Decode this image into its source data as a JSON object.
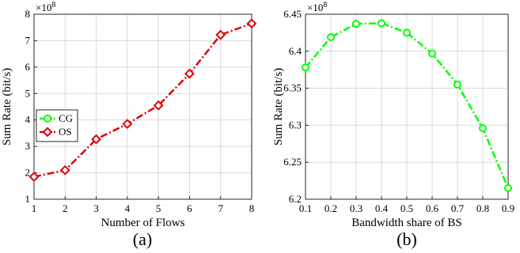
{
  "chart_data": [
    {
      "type": "line",
      "panel_label": "(a)",
      "xlabel": "Number of Flows",
      "ylabel": "Sum Rate (bit/s)",
      "y_exponent": "×10",
      "y_exponent_power": "8",
      "xlim": [
        1,
        8
      ],
      "ylim": [
        1,
        8
      ],
      "xticks": [
        "1",
        "2",
        "3",
        "4",
        "5",
        "6",
        "7",
        "8"
      ],
      "yticks": [
        "1",
        "2",
        "3",
        "4",
        "5",
        "6",
        "7",
        "8"
      ],
      "grid": true,
      "legend_position": "center-left",
      "legend": [
        {
          "name": "CG",
          "color": "#00ff00",
          "marker": "circle"
        },
        {
          "name": "OS",
          "color": "#dd0000",
          "marker": "diamond"
        }
      ],
      "series": [
        {
          "name": "OS",
          "color": "#dd0000",
          "marker": "diamond",
          "line_style": "dash-dot",
          "x": [
            1,
            2,
            3,
            4,
            5,
            6,
            7,
            8
          ],
          "y": [
            1.85,
            2.1,
            3.27,
            3.85,
            4.55,
            5.75,
            7.22,
            7.65
          ]
        }
      ]
    },
    {
      "type": "line",
      "panel_label": "(b)",
      "xlabel": "Bandwidth share of BS",
      "ylabel": "Sum Rate (bit/s)",
      "y_exponent": "×10",
      "y_exponent_power": "8",
      "xlim": [
        0.1,
        0.9
      ],
      "ylim": [
        6.2,
        6.45
      ],
      "xticks": [
        "0.1",
        "0.2",
        "0.3",
        "0.4",
        "0.5",
        "0.6",
        "0.7",
        "0.8",
        "0.9"
      ],
      "yticks": [
        "6.2",
        "6.25",
        "6.3",
        "6.35",
        "6.4",
        "6.45"
      ],
      "grid": true,
      "series": [
        {
          "name": "CG",
          "color": "#00ff00",
          "marker": "circle",
          "line_style": "dash-dot",
          "x": [
            0.1,
            0.2,
            0.3,
            0.4,
            0.5,
            0.6,
            0.7,
            0.8,
            0.9
          ],
          "y": [
            6.378,
            6.419,
            6.437,
            6.438,
            6.425,
            6.397,
            6.355,
            6.296,
            6.215
          ]
        }
      ]
    }
  ]
}
